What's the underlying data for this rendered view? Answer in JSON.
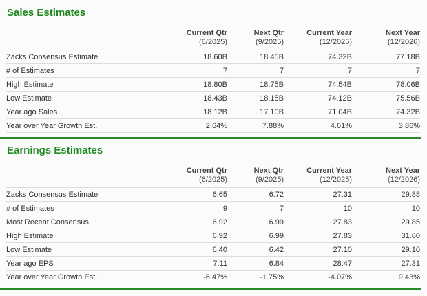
{
  "columns": [
    {
      "label": "Current Qtr",
      "period": "(6/2025)"
    },
    {
      "label": "Next Qtr",
      "period": "(9/2025)"
    },
    {
      "label": "Current Year",
      "period": "(12/2025)"
    },
    {
      "label": "Next Year",
      "period": "(12/2026)"
    }
  ],
  "sales": {
    "title": "Sales Estimates",
    "rows": [
      {
        "label": "Zacks Consensus Estimate",
        "values": [
          "18.60B",
          "18.45B",
          "74.32B",
          "77.18B"
        ]
      },
      {
        "label": "# of Estimates",
        "values": [
          "7",
          "7",
          "7",
          "7"
        ]
      },
      {
        "label": "High Estimate",
        "values": [
          "18.80B",
          "18.75B",
          "74.54B",
          "78.06B"
        ]
      },
      {
        "label": "Low Estimate",
        "values": [
          "18.43B",
          "18.15B",
          "74.12B",
          "75.56B"
        ]
      },
      {
        "label": "Year ago Sales",
        "values": [
          "18.12B",
          "17.10B",
          "71.04B",
          "74.32B"
        ]
      },
      {
        "label": "Year over Year Growth Est.",
        "values": [
          "2.64%",
          "7.88%",
          "4.61%",
          "3.86%"
        ]
      }
    ]
  },
  "earnings": {
    "title": "Earnings Estimates",
    "rows": [
      {
        "label": "Zacks Consensus Estimate",
        "values": [
          "6.65",
          "6.72",
          "27.31",
          "29.88"
        ]
      },
      {
        "label": "# of Estimates",
        "values": [
          "9",
          "7",
          "10",
          "10"
        ]
      },
      {
        "label": "Most Recent Consensus",
        "values": [
          "6.92",
          "6.99",
          "27.83",
          "29.85"
        ]
      },
      {
        "label": "High Estimate",
        "values": [
          "6.92",
          "6.99",
          "27.83",
          "31.60"
        ]
      },
      {
        "label": "Low Estimate",
        "values": [
          "6.40",
          "6.42",
          "27.10",
          "29.10"
        ]
      },
      {
        "label": "Year ago EPS",
        "values": [
          "7.11",
          "6.84",
          "28.47",
          "27.31"
        ]
      },
      {
        "label": "Year over Year Growth Est.",
        "values": [
          "-6.47%",
          "-1.75%",
          "-4.07%",
          "9.43%"
        ]
      }
    ]
  },
  "colors": {
    "accent_green": "#1f8a1f",
    "rule_green": "#2a8a2a"
  }
}
